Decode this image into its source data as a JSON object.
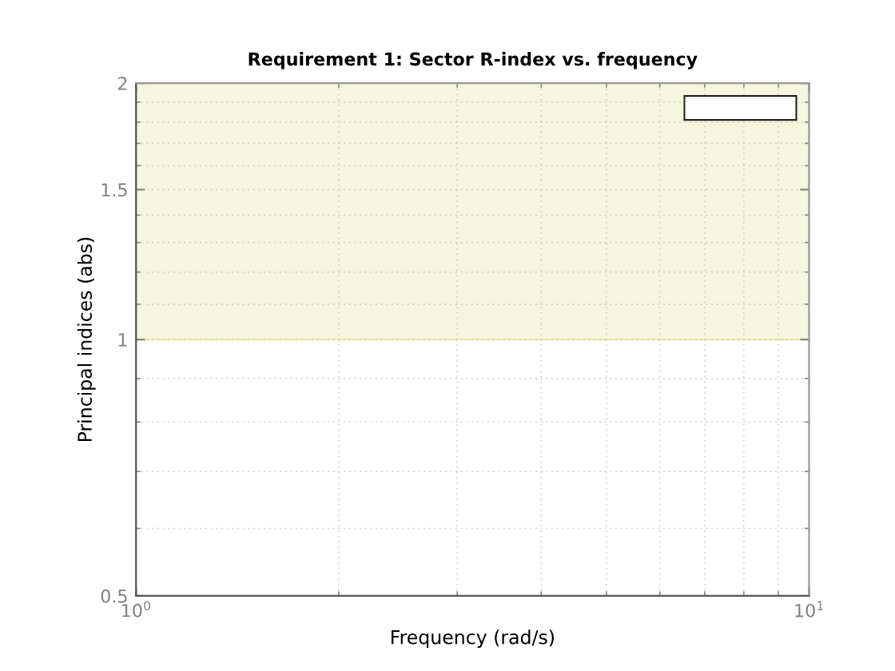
{
  "chart_data": {
    "type": "line",
    "title": "Requirement 1: Sector R-index vs. frequency",
    "xlabel": "Frequency (rad/s)",
    "ylabel": "Principal indices (abs)",
    "log": "xy",
    "xlim": [
      1,
      10
    ],
    "xticks": [
      {
        "value": 1,
        "label": "10$^{0}$"
      },
      {
        "value": 10,
        "label": "10$^{1}$"
      }
    ],
    "ylim": [
      0.5,
      2
    ],
    "yticks": [
      0.5,
      1,
      1.5,
      2
    ],
    "bands": [
      {
        "axis": "y",
        "from": 1,
        "to": 2,
        "color": "#f6f6de"
      }
    ],
    "grid": true
  }
}
